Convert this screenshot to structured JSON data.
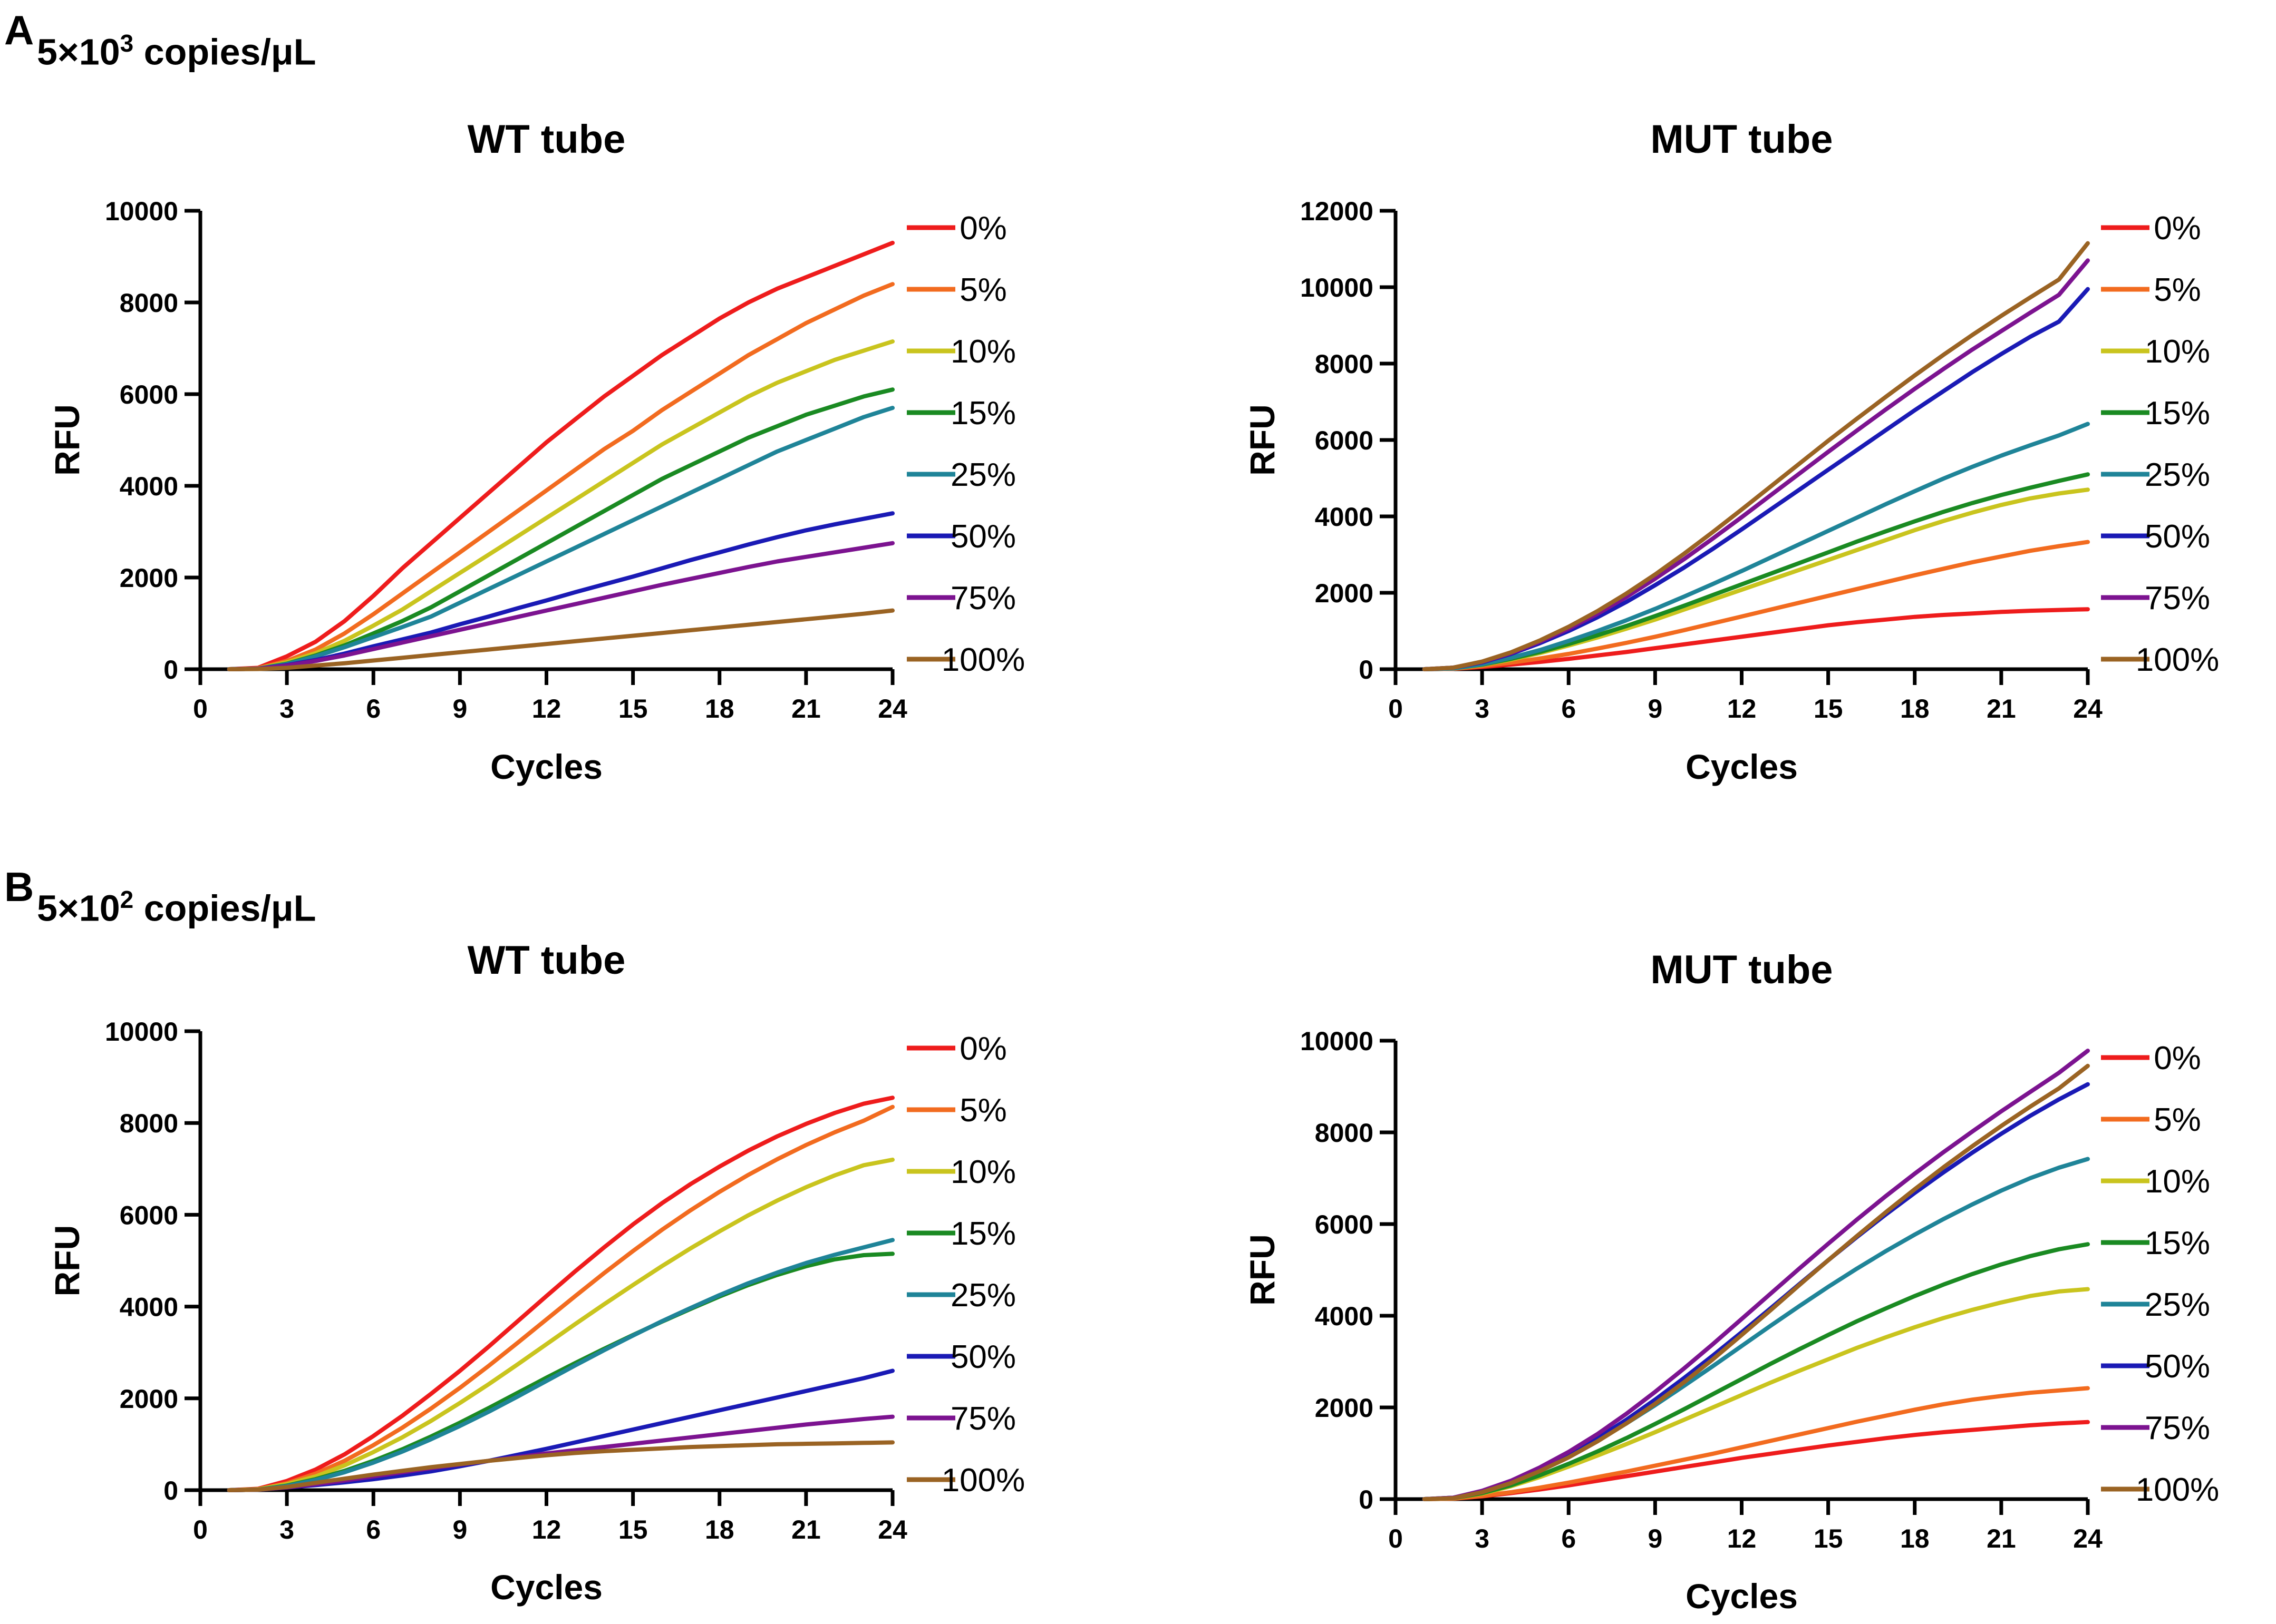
{
  "panels": [
    {
      "letter": "A",
      "heading_prefix": "5×10",
      "heading_exp": "3",
      "heading_suffix": " copies/μL"
    },
    {
      "letter": "B",
      "heading_prefix": "5×10",
      "heading_exp": "2",
      "heading_suffix": " copies/μL"
    }
  ],
  "colors": {
    "0%": "#ee1c1c",
    "5%": "#f26b1f",
    "10%": "#c9c41e",
    "15%": "#1a8a22",
    "25%": "#1f8498",
    "50%": "#1a1ab5",
    "75%": "#7c1390",
    "100%": "#9a6323"
  },
  "chart_data": [
    {
      "id": "A-WT",
      "type": "line",
      "title": "WT tube",
      "xlabel": "Cycles",
      "ylabel": "RFU",
      "xlim": [
        0,
        24
      ],
      "ylim": [
        0,
        10000
      ],
      "xticks": [
        0,
        3,
        6,
        9,
        12,
        15,
        18,
        21,
        24
      ],
      "yticks": [
        0,
        2000,
        4000,
        6000,
        8000,
        10000
      ],
      "x": [
        1,
        2,
        3,
        4,
        5,
        6,
        7,
        8,
        9,
        10,
        11,
        12,
        13,
        14,
        15,
        16,
        17,
        18,
        19,
        20,
        21,
        22,
        23,
        24
      ],
      "series": [
        {
          "name": "0%",
          "values": [
            0,
            30,
            280,
            600,
            1050,
            1600,
            2200,
            2750,
            3300,
            3850,
            4400,
            4950,
            5450,
            5950,
            6400,
            6850,
            7250,
            7650,
            8000,
            8300,
            8550,
            8800,
            9050,
            9300
          ]
        },
        {
          "name": "5%",
          "values": [
            0,
            20,
            180,
            430,
            780,
            1200,
            1650,
            2100,
            2550,
            3000,
            3450,
            3900,
            4350,
            4800,
            5200,
            5650,
            6050,
            6450,
            6850,
            7200,
            7550,
            7850,
            8150,
            8400
          ]
        },
        {
          "name": "10%",
          "values": [
            0,
            15,
            150,
            350,
            620,
            950,
            1300,
            1700,
            2100,
            2500,
            2900,
            3300,
            3700,
            4100,
            4500,
            4900,
            5250,
            5600,
            5950,
            6250,
            6500,
            6750,
            6950,
            7150
          ]
        },
        {
          "name": "15%",
          "values": [
            0,
            10,
            120,
            300,
            520,
            780,
            1050,
            1350,
            1700,
            2050,
            2400,
            2750,
            3100,
            3450,
            3800,
            4150,
            4450,
            4750,
            5050,
            5300,
            5550,
            5750,
            5950,
            6100
          ]
        },
        {
          "name": "25%",
          "values": [
            0,
            10,
            110,
            280,
            480,
            700,
            920,
            1150,
            1450,
            1750,
            2050,
            2350,
            2650,
            2950,
            3250,
            3550,
            3850,
            4150,
            4450,
            4750,
            5000,
            5250,
            5500,
            5700
          ]
        },
        {
          "name": "50%",
          "values": [
            0,
            10,
            90,
            200,
            340,
            500,
            650,
            800,
            980,
            1150,
            1330,
            1500,
            1680,
            1850,
            2020,
            2200,
            2380,
            2550,
            2720,
            2880,
            3030,
            3160,
            3280,
            3400
          ]
        },
        {
          "name": "75%",
          "values": [
            0,
            10,
            80,
            180,
            300,
            440,
            580,
            720,
            860,
            1000,
            1140,
            1280,
            1420,
            1560,
            1700,
            1840,
            1970,
            2100,
            2230,
            2350,
            2450,
            2550,
            2650,
            2750
          ]
        },
        {
          "name": "100%",
          "values": [
            0,
            5,
            30,
            80,
            130,
            190,
            250,
            310,
            370,
            430,
            490,
            550,
            610,
            670,
            730,
            790,
            850,
            910,
            970,
            1030,
            1090,
            1150,
            1210,
            1280
          ]
        }
      ]
    },
    {
      "id": "A-MUT",
      "type": "line",
      "title": "MUT tube",
      "xlabel": "Cycles",
      "ylabel": "RFU",
      "xlim": [
        0,
        24
      ],
      "ylim": [
        0,
        12000
      ],
      "xticks": [
        0,
        3,
        6,
        9,
        12,
        15,
        18,
        21,
        24
      ],
      "yticks": [
        0,
        2000,
        4000,
        6000,
        8000,
        10000,
        12000
      ],
      "x": [
        1,
        2,
        3,
        4,
        5,
        6,
        7,
        8,
        9,
        10,
        11,
        12,
        13,
        14,
        15,
        16,
        17,
        18,
        19,
        20,
        21,
        22,
        23,
        24
      ],
      "series": [
        {
          "name": "0%",
          "values": [
            0,
            10,
            60,
            120,
            190,
            270,
            360,
            450,
            550,
            650,
            750,
            850,
            950,
            1050,
            1150,
            1230,
            1300,
            1370,
            1420,
            1460,
            1500,
            1530,
            1550,
            1570
          ]
        },
        {
          "name": "5%",
          "values": [
            0,
            10,
            80,
            170,
            280,
            400,
            540,
            690,
            850,
            1020,
            1200,
            1380,
            1560,
            1740,
            1920,
            2100,
            2280,
            2460,
            2630,
            2800,
            2950,
            3100,
            3220,
            3330
          ]
        },
        {
          "name": "10%",
          "values": [
            0,
            20,
            110,
            250,
            420,
            620,
            830,
            1060,
            1300,
            1560,
            1820,
            2080,
            2340,
            2600,
            2860,
            3120,
            3380,
            3640,
            3880,
            4100,
            4300,
            4470,
            4600,
            4700
          ]
        },
        {
          "name": "15%",
          "values": [
            0,
            20,
            120,
            270,
            450,
            660,
            890,
            1130,
            1390,
            1660,
            1940,
            2220,
            2500,
            2780,
            3060,
            3340,
            3610,
            3870,
            4120,
            4350,
            4560,
            4750,
            4930,
            5100
          ]
        },
        {
          "name": "25%",
          "values": [
            0,
            20,
            130,
            300,
            500,
            740,
            1000,
            1280,
            1580,
            1900,
            2230,
            2570,
            2920,
            3270,
            3620,
            3970,
            4320,
            4660,
            4990,
            5300,
            5590,
            5860,
            6120,
            6420
          ]
        },
        {
          "name": "50%",
          "values": [
            0,
            40,
            180,
            400,
            680,
            1000,
            1360,
            1760,
            2200,
            2660,
            3150,
            3660,
            4180,
            4700,
            5220,
            5740,
            6260,
            6780,
            7280,
            7780,
            8250,
            8700,
            9100,
            9950
          ]
        },
        {
          "name": "75%",
          "values": [
            0,
            40,
            190,
            420,
            720,
            1060,
            1450,
            1890,
            2370,
            2880,
            3420,
            3980,
            4550,
            5120,
            5690,
            6250,
            6800,
            7340,
            7860,
            8370,
            8850,
            9330,
            9800,
            10700
          ]
        },
        {
          "name": "100%",
          "values": [
            0,
            40,
            200,
            440,
            750,
            1110,
            1520,
            1980,
            2480,
            3020,
            3590,
            4180,
            4780,
            5380,
            5980,
            6560,
            7130,
            7690,
            8230,
            8750,
            9250,
            9730,
            10200,
            11150
          ]
        }
      ]
    },
    {
      "id": "B-WT",
      "type": "line",
      "title": "WT tube",
      "xlabel": "Cycles",
      "ylabel": "RFU",
      "xlim": [
        0,
        24
      ],
      "ylim": [
        0,
        10000
      ],
      "xticks": [
        0,
        3,
        6,
        9,
        12,
        15,
        18,
        21,
        24
      ],
      "yticks": [
        0,
        2000,
        4000,
        6000,
        8000,
        10000
      ],
      "x": [
        1,
        2,
        3,
        4,
        5,
        6,
        7,
        8,
        9,
        10,
        11,
        12,
        13,
        14,
        15,
        16,
        17,
        18,
        19,
        20,
        21,
        22,
        23,
        24
      ],
      "series": [
        {
          "name": "0%",
          "values": [
            0,
            30,
            200,
            450,
            780,
            1180,
            1620,
            2100,
            2600,
            3130,
            3680,
            4230,
            4770,
            5290,
            5790,
            6250,
            6670,
            7050,
            7400,
            7710,
            7980,
            8220,
            8420,
            8550
          ]
        },
        {
          "name": "5%",
          "values": [
            0,
            20,
            150,
            360,
            640,
            980,
            1360,
            1780,
            2230,
            2710,
            3210,
            3720,
            4230,
            4730,
            5210,
            5670,
            6100,
            6500,
            6870,
            7210,
            7520,
            7800,
            8050,
            8350
          ]
        },
        {
          "name": "10%",
          "values": [
            0,
            20,
            130,
            300,
            540,
            830,
            1150,
            1510,
            1900,
            2310,
            2740,
            3180,
            3620,
            4050,
            4470,
            4880,
            5270,
            5640,
            5990,
            6310,
            6600,
            6860,
            7080,
            7200
          ]
        },
        {
          "name": "15%",
          "values": [
            0,
            10,
            100,
            240,
            420,
            640,
            890,
            1170,
            1470,
            1790,
            2120,
            2450,
            2770,
            3080,
            3380,
            3670,
            3950,
            4220,
            4470,
            4690,
            4880,
            5030,
            5120,
            5150
          ]
        },
        {
          "name": "25%",
          "values": [
            0,
            10,
            90,
            220,
            390,
            600,
            840,
            1110,
            1400,
            1710,
            2040,
            2380,
            2720,
            3050,
            3370,
            3680,
            3970,
            4250,
            4510,
            4740,
            4950,
            5130,
            5290,
            5450
          ]
        },
        {
          "name": "50%",
          "values": [
            0,
            10,
            60,
            110,
            170,
            240,
            320,
            410,
            520,
            640,
            770,
            900,
            1040,
            1180,
            1320,
            1460,
            1600,
            1740,
            1880,
            2020,
            2160,
            2300,
            2440,
            2600
          ]
        },
        {
          "name": "75%",
          "values": [
            0,
            10,
            60,
            130,
            210,
            300,
            390,
            480,
            560,
            640,
            720,
            800,
            870,
            940,
            1010,
            1080,
            1150,
            1220,
            1290,
            1360,
            1430,
            1490,
            1550,
            1600
          ]
        },
        {
          "name": "100%",
          "values": [
            0,
            10,
            70,
            160,
            250,
            340,
            420,
            500,
            570,
            640,
            700,
            760,
            810,
            850,
            880,
            910,
            940,
            960,
            980,
            1000,
            1010,
            1020,
            1030,
            1040
          ]
        }
      ]
    },
    {
      "id": "B-MUT",
      "type": "line",
      "title": "MUT tube",
      "xlabel": "Cycles",
      "ylabel": "RFU",
      "xlim": [
        0,
        24
      ],
      "ylim": [
        0,
        10000
      ],
      "xticks": [
        0,
        3,
        6,
        9,
        12,
        15,
        18,
        21,
        24
      ],
      "yticks": [
        0,
        2000,
        4000,
        6000,
        8000,
        10000
      ],
      "x": [
        1,
        2,
        3,
        4,
        5,
        6,
        7,
        8,
        9,
        10,
        11,
        12,
        13,
        14,
        15,
        16,
        17,
        18,
        19,
        20,
        21,
        22,
        23,
        24
      ],
      "series": [
        {
          "name": "0%",
          "values": [
            0,
            10,
            60,
            130,
            210,
            300,
            400,
            500,
            600,
            700,
            800,
            900,
            990,
            1080,
            1170,
            1250,
            1330,
            1400,
            1460,
            1510,
            1560,
            1610,
            1650,
            1680
          ]
        },
        {
          "name": "5%",
          "values": [
            0,
            10,
            70,
            150,
            250,
            360,
            480,
            600,
            730,
            860,
            990,
            1130,
            1270,
            1410,
            1550,
            1690,
            1820,
            1950,
            2070,
            2170,
            2250,
            2320,
            2370,
            2420
          ]
        },
        {
          "name": "10%",
          "values": [
            0,
            20,
            120,
            280,
            480,
            710,
            950,
            1200,
            1460,
            1730,
            2000,
            2270,
            2540,
            2800,
            3050,
            3300,
            3530,
            3750,
            3950,
            4130,
            4290,
            4430,
            4530,
            4580
          ]
        },
        {
          "name": "15%",
          "values": [
            0,
            20,
            130,
            300,
            520,
            770,
            1040,
            1330,
            1640,
            1960,
            2290,
            2620,
            2950,
            3270,
            3580,
            3880,
            4160,
            4430,
            4680,
            4910,
            5120,
            5300,
            5450,
            5560
          ]
        },
        {
          "name": "25%",
          "values": [
            0,
            30,
            170,
            380,
            640,
            940,
            1280,
            1650,
            2050,
            2470,
            2900,
            3340,
            3780,
            4210,
            4630,
            5030,
            5410,
            5770,
            6110,
            6430,
            6730,
            7000,
            7230,
            7420
          ]
        },
        {
          "name": "50%",
          "values": [
            0,
            30,
            170,
            380,
            650,
            970,
            1330,
            1730,
            2170,
            2640,
            3130,
            3640,
            4160,
            4690,
            5210,
            5720,
            6210,
            6680,
            7130,
            7560,
            7970,
            8360,
            8720,
            9050
          ]
        },
        {
          "name": "75%",
          "values": [
            0,
            30,
            180,
            400,
            690,
            1030,
            1420,
            1860,
            2340,
            2850,
            3380,
            3930,
            4480,
            5030,
            5570,
            6100,
            6610,
            7100,
            7570,
            8020,
            8460,
            8880,
            9300,
            9780
          ]
        },
        {
          "name": "100%",
          "values": [
            0,
            20,
            150,
            350,
            610,
            910,
            1260,
            1650,
            2080,
            2550,
            3050,
            3580,
            4120,
            4670,
            5210,
            5740,
            6260,
            6760,
            7240,
            7700,
            8140,
            8560,
            8960,
            9450
          ]
        }
      ]
    }
  ]
}
